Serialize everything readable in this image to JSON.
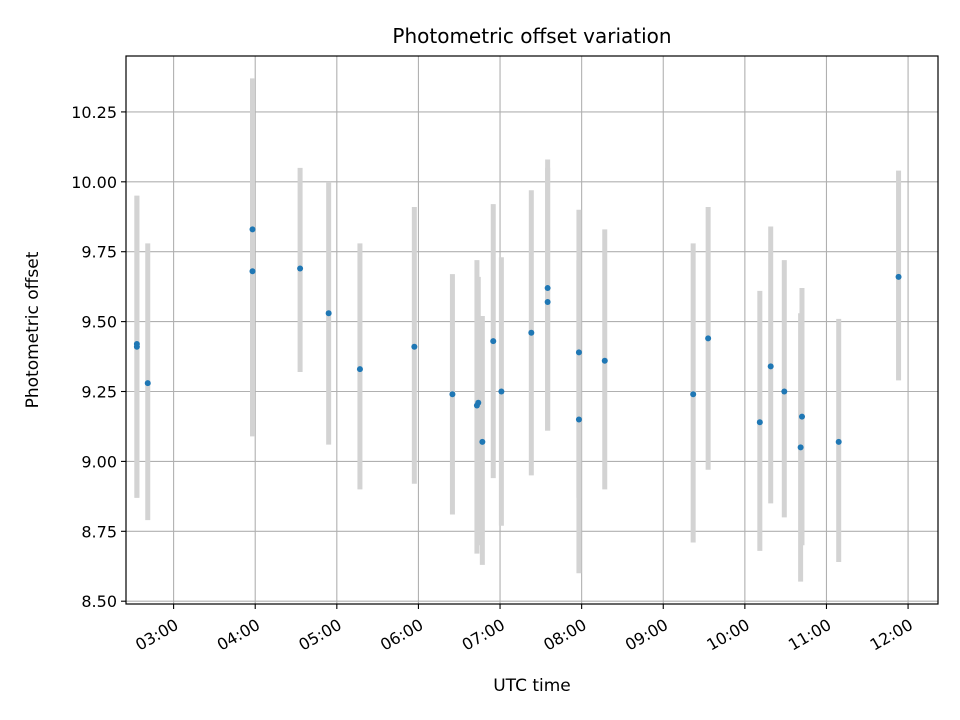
{
  "chart_data": {
    "type": "scatter",
    "title": "Photometric offset variation",
    "xlabel": "UTC time",
    "ylabel": "Photometric offset",
    "x_tick_labels": [
      "03:00",
      "04:00",
      "05:00",
      "06:00",
      "07:00",
      "08:00",
      "09:00",
      "10:00",
      "11:00",
      "12:00"
    ],
    "y_ticks": [
      8.5,
      8.75,
      9.0,
      9.25,
      9.5,
      9.75,
      10.0,
      10.25
    ],
    "y_tick_labels": [
      "8.50",
      "8.75",
      "9.00",
      "9.25",
      "9.50",
      "9.75",
      "10.00",
      "10.25"
    ],
    "xlim": [
      "02:25",
      "12:22"
    ],
    "ylim": [
      8.49,
      10.45
    ],
    "grid": true,
    "colors": {
      "marker": "#1f77b4",
      "errorbar": "#d3d3d3",
      "grid": "#b0b0b0"
    },
    "points": [
      {
        "x": "02:33",
        "y": 9.42,
        "yerr_low": 8.87,
        "yerr_high": 9.95
      },
      {
        "x": "02:33",
        "y": 9.41,
        "yerr_low": 8.87,
        "yerr_high": 9.95
      },
      {
        "x": "02:41",
        "y": 9.28,
        "yerr_low": 8.79,
        "yerr_high": 9.78
      },
      {
        "x": "03:58",
        "y": 9.83,
        "yerr_low": 9.09,
        "yerr_high": 10.37
      },
      {
        "x": "03:58",
        "y": 9.68,
        "yerr_low": 9.09,
        "yerr_high": 10.28
      },
      {
        "x": "04:33",
        "y": 9.69,
        "yerr_low": 9.32,
        "yerr_high": 10.05
      },
      {
        "x": "04:54",
        "y": 9.53,
        "yerr_low": 9.06,
        "yerr_high": 10.0
      },
      {
        "x": "05:17",
        "y": 9.33,
        "yerr_low": 8.9,
        "yerr_high": 9.78
      },
      {
        "x": "05:57",
        "y": 9.41,
        "yerr_low": 8.92,
        "yerr_high": 9.91
      },
      {
        "x": "06:25",
        "y": 9.24,
        "yerr_low": 8.81,
        "yerr_high": 9.67
      },
      {
        "x": "06:43",
        "y": 9.2,
        "yerr_low": 8.67,
        "yerr_high": 9.72
      },
      {
        "x": "06:44",
        "y": 9.21,
        "yerr_low": 8.7,
        "yerr_high": 9.66
      },
      {
        "x": "06:47",
        "y": 9.07,
        "yerr_low": 8.63,
        "yerr_high": 9.52
      },
      {
        "x": "06:55",
        "y": 9.43,
        "yerr_low": 8.94,
        "yerr_high": 9.92
      },
      {
        "x": "07:01",
        "y": 9.25,
        "yerr_low": 8.77,
        "yerr_high": 9.73
      },
      {
        "x": "07:23",
        "y": 9.46,
        "yerr_low": 8.95,
        "yerr_high": 9.97
      },
      {
        "x": "07:35",
        "y": 9.62,
        "yerr_low": 9.11,
        "yerr_high": 10.08
      },
      {
        "x": "07:35",
        "y": 9.57,
        "yerr_low": 9.11,
        "yerr_high": 10.05
      },
      {
        "x": "07:58",
        "y": 9.39,
        "yerr_low": 8.87,
        "yerr_high": 9.9
      },
      {
        "x": "07:58",
        "y": 9.15,
        "yerr_low": 8.6,
        "yerr_high": 9.72
      },
      {
        "x": "08:17",
        "y": 9.36,
        "yerr_low": 8.9,
        "yerr_high": 9.83
      },
      {
        "x": "09:22",
        "y": 9.24,
        "yerr_low": 8.71,
        "yerr_high": 9.78
      },
      {
        "x": "09:33",
        "y": 9.44,
        "yerr_low": 8.97,
        "yerr_high": 9.91
      },
      {
        "x": "10:11",
        "y": 9.14,
        "yerr_low": 8.68,
        "yerr_high": 9.61
      },
      {
        "x": "10:19",
        "y": 9.34,
        "yerr_low": 8.85,
        "yerr_high": 9.84
      },
      {
        "x": "10:29",
        "y": 9.25,
        "yerr_low": 8.8,
        "yerr_high": 9.72
      },
      {
        "x": "10:41",
        "y": 9.05,
        "yerr_low": 8.57,
        "yerr_high": 9.53
      },
      {
        "x": "10:42",
        "y": 9.16,
        "yerr_low": 8.7,
        "yerr_high": 9.62
      },
      {
        "x": "11:09",
        "y": 9.07,
        "yerr_low": 8.64,
        "yerr_high": 9.51
      },
      {
        "x": "11:53",
        "y": 9.66,
        "yerr_low": 9.29,
        "yerr_high": 10.04
      }
    ]
  }
}
